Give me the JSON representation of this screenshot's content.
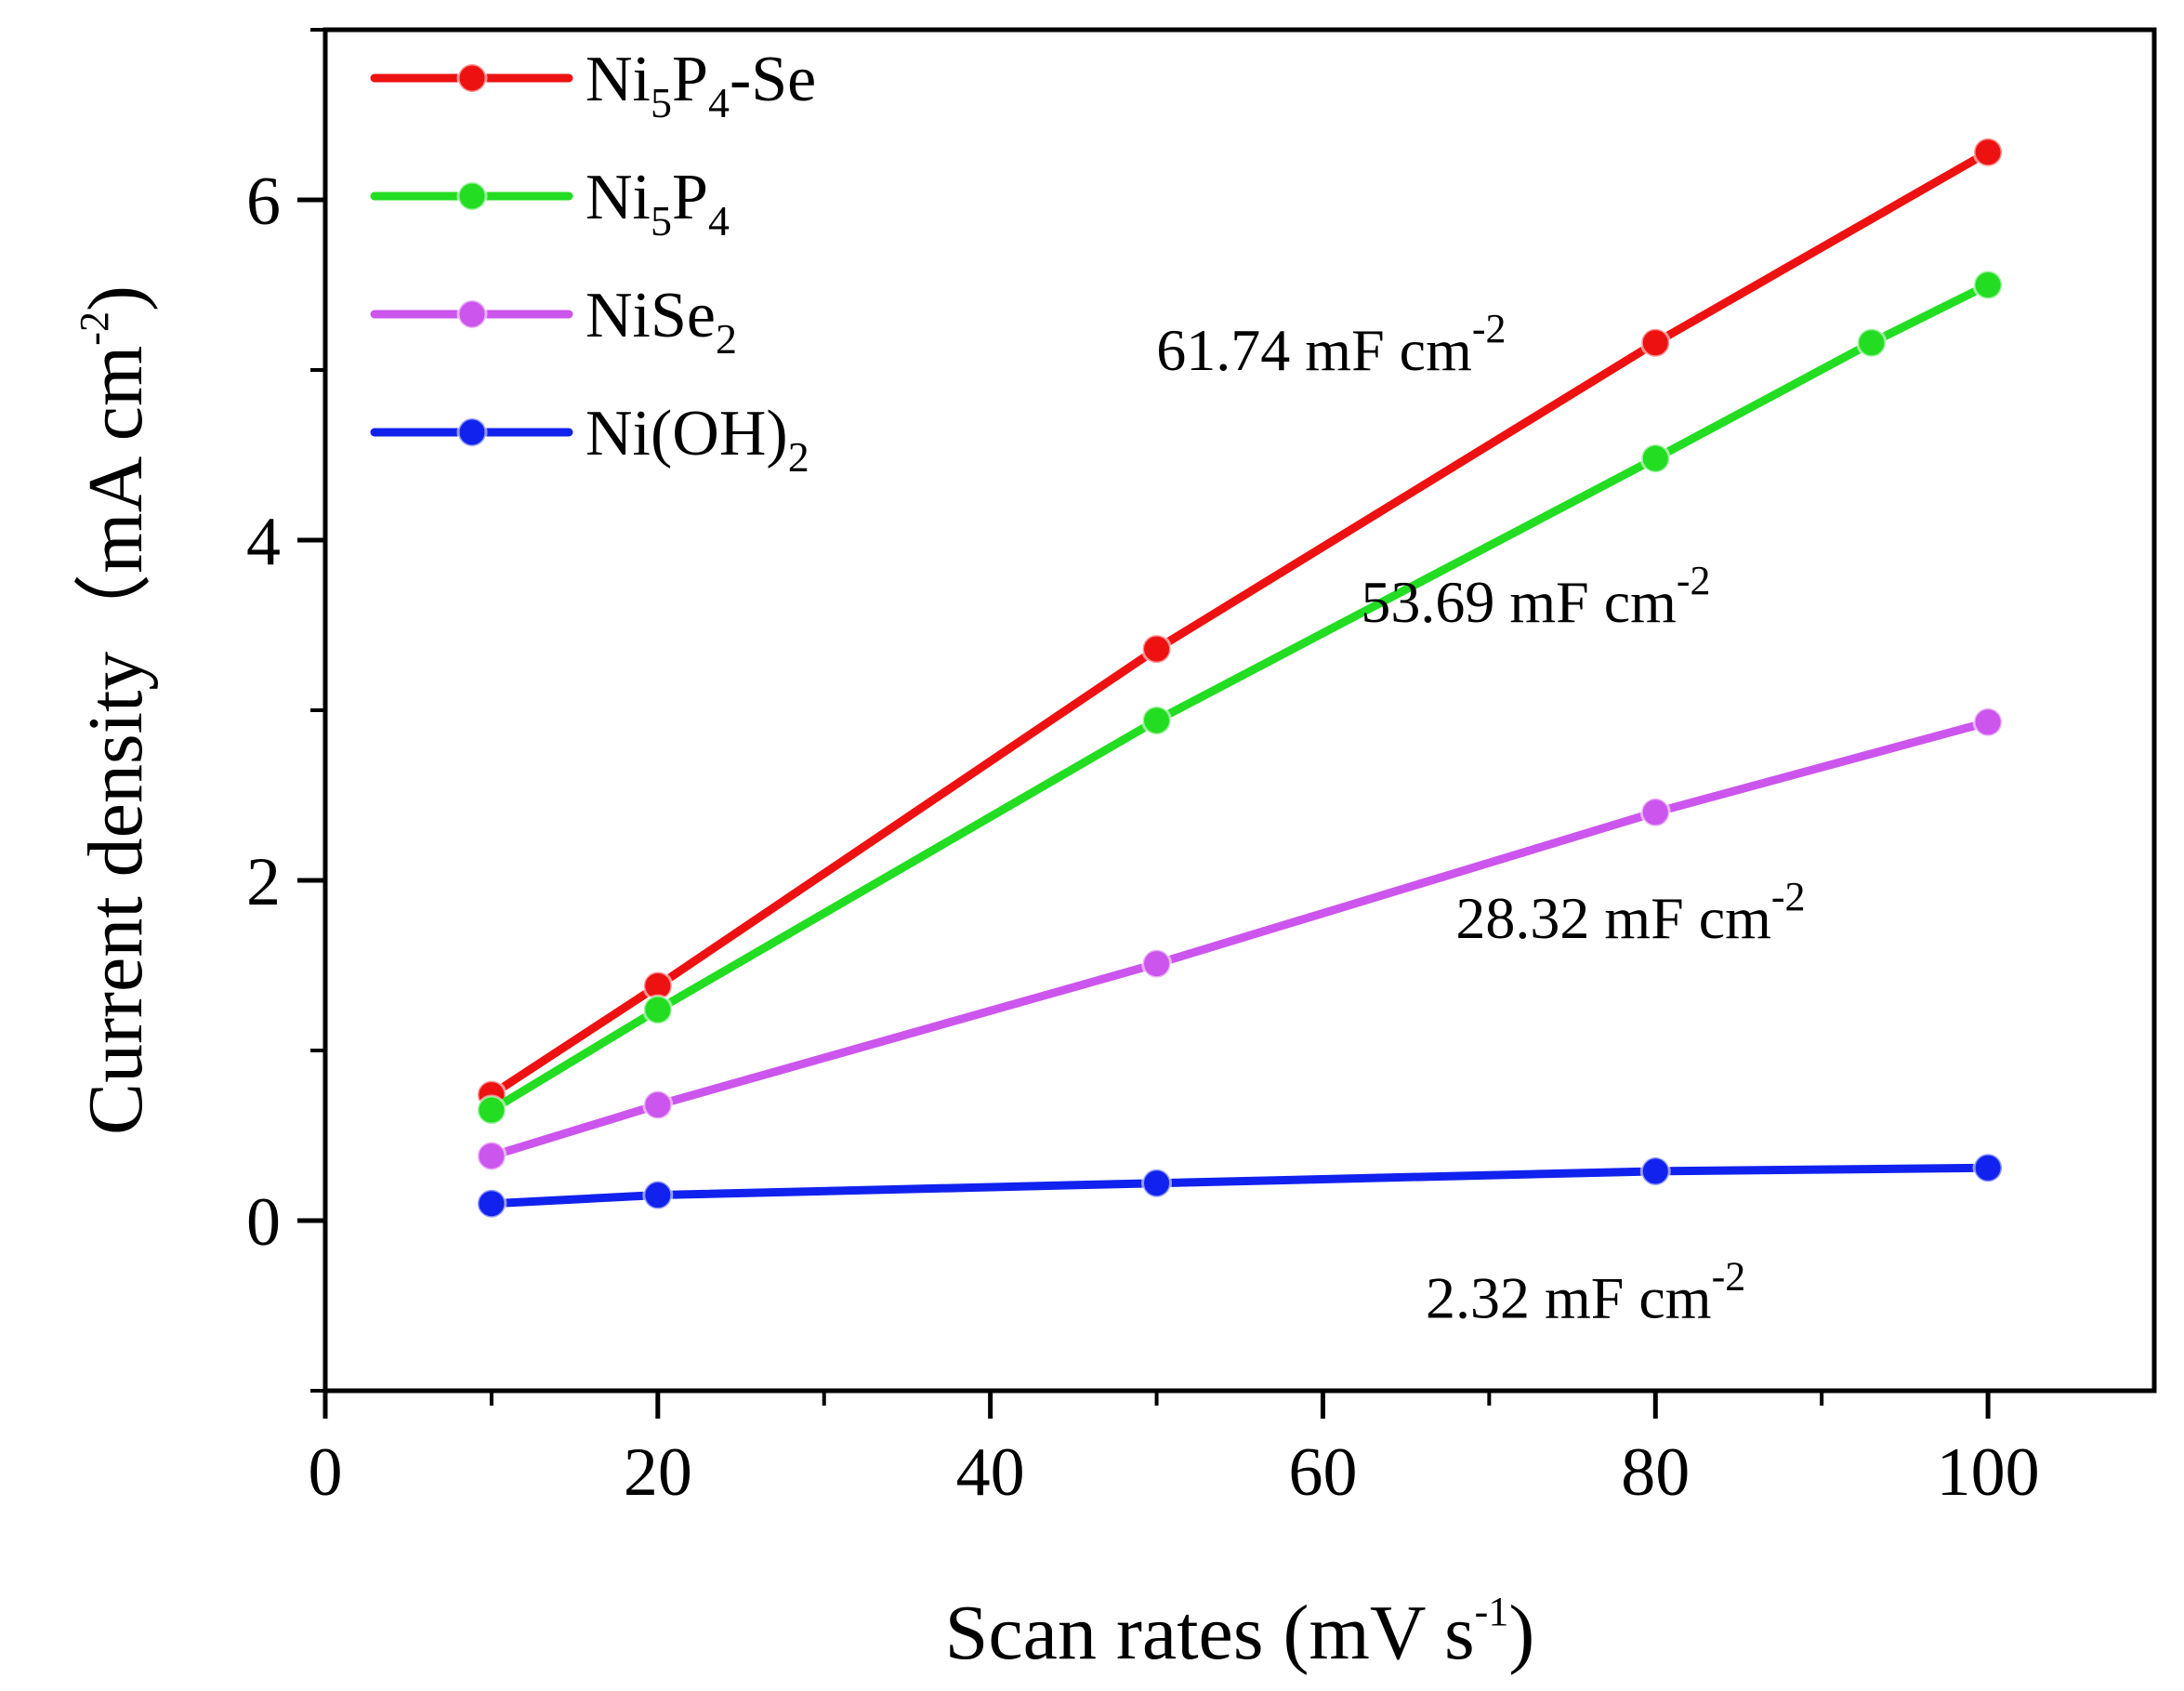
{
  "chart_data": {
    "type": "line",
    "title": "",
    "xlabel": "Scan rates (mV s-1)",
    "xlabel_parts": {
      "main": "Scan rates (mV s",
      "sup": "-1",
      "end": ")"
    },
    "ylabel": "Current density (mA cm-2)",
    "ylabel_parts": {
      "main": "Current density（mA cm",
      "sup": "-2",
      "end": ")"
    },
    "xlim": [
      0,
      110
    ],
    "ylim": [
      -1,
      7
    ],
    "xticks": [
      0,
      20,
      40,
      60,
      80,
      100
    ],
    "xtick_labels": [
      "0",
      "20",
      "40",
      "60",
      "80",
      "100"
    ],
    "yticks": [
      0,
      2,
      4,
      6
    ],
    "ytick_labels": [
      "0",
      "2",
      "4",
      "6"
    ],
    "grid": false,
    "legend_position": "top-left",
    "series": [
      {
        "name": "Ni5P4-Se",
        "label_parts": [
          {
            "t": "Ni"
          },
          {
            "t": "5",
            "sub": true
          },
          {
            "t": "P"
          },
          {
            "t": "4",
            "sub": true
          },
          {
            "t": "-Se"
          }
        ],
        "color": "#ee1111",
        "x": [
          10,
          20,
          50,
          80,
          100
        ],
        "y": [
          0.74,
          1.38,
          3.36,
          5.16,
          6.28
        ],
        "annotation": {
          "main": "61.74 mF cm",
          "sup": "-2",
          "x": 60.5,
          "y": 5.0
        }
      },
      {
        "name": "Ni5P4",
        "label_parts": [
          {
            "t": "Ni"
          },
          {
            "t": "5",
            "sub": true
          },
          {
            "t": "P"
          },
          {
            "t": "4",
            "sub": true
          }
        ],
        "color": "#22dd22",
        "x": [
          10,
          20,
          50,
          80,
          93,
          100
        ],
        "y": [
          0.65,
          1.24,
          2.94,
          4.48,
          5.16,
          5.5
        ],
        "annotation": {
          "main": "53.69 mF cm",
          "sup": "-2",
          "x": 72.8,
          "y": 3.52
        }
      },
      {
        "name": "NiSe2",
        "label_parts": [
          {
            "t": "NiSe"
          },
          {
            "t": "2",
            "sub": true
          }
        ],
        "color": "#cc55ee",
        "x": [
          10,
          20,
          50,
          80,
          100
        ],
        "y": [
          0.38,
          0.68,
          1.51,
          2.4,
          2.93
        ],
        "annotation": {
          "main": "28.32 mF cm",
          "sup": "-2",
          "x": 78.5,
          "y": 1.66
        }
      },
      {
        "name": "Ni(OH)2",
        "label_parts": [
          {
            "t": "Ni(OH)"
          },
          {
            "t": "2",
            "sub": true
          }
        ],
        "color": "#1122ee",
        "x": [
          10,
          20,
          50,
          80,
          100
        ],
        "y": [
          0.1,
          0.15,
          0.22,
          0.29,
          0.31
        ],
        "annotation": {
          "main": "2.32 mF cm",
          "sup": "-2",
          "x": 75.8,
          "y": -0.57
        }
      }
    ]
  }
}
